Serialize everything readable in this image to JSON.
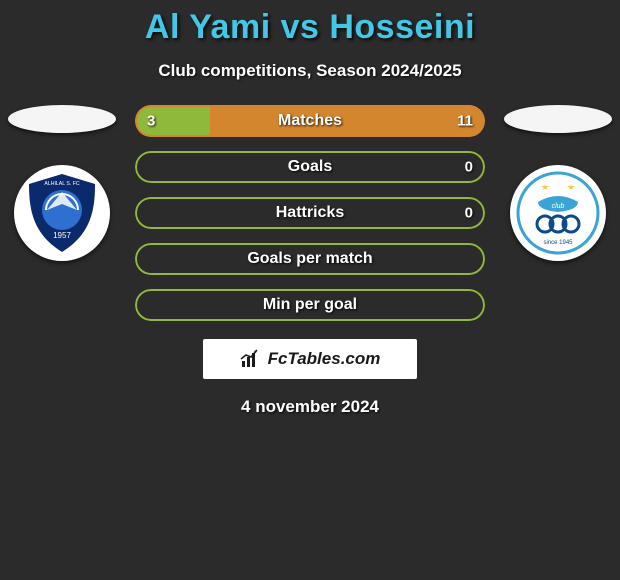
{
  "header": {
    "title": "Al Yami vs Hosseini",
    "title_color": "#43c7e6",
    "title_fontsize": 34,
    "subtitle": "Club competitions, Season 2024/2025",
    "subtitle_color": "#ffffff",
    "subtitle_fontsize": 17
  },
  "background_color": "#2b2b2b",
  "left_player": {
    "club_primary": "#0a2a6b",
    "club_secondary": "#ffffff",
    "flag_bg": "#f5f5f5"
  },
  "right_player": {
    "club_primary": "#3aa4d4",
    "club_secondary": "#ffffff",
    "club_accent": "#f2c94c",
    "flag_bg": "#f5f5f5"
  },
  "bars": {
    "height": 32,
    "radius": 16,
    "label_color": "#ffffff",
    "label_fontsize": 16,
    "value_fontsize": 15,
    "left_color": "#8fb93b",
    "right_color": "#d4862f",
    "items": [
      {
        "label": "Matches",
        "left_val": "3",
        "right_val": "11",
        "left_pct": 21.4,
        "right_pct": 78.6,
        "border": "#d4862f"
      },
      {
        "label": "Goals",
        "left_val": "",
        "right_val": "0",
        "left_pct": 0,
        "right_pct": 0,
        "border": "#8fb93b"
      },
      {
        "label": "Hattricks",
        "left_val": "",
        "right_val": "0",
        "left_pct": 0,
        "right_pct": 0,
        "border": "#8fb93b"
      },
      {
        "label": "Goals per match",
        "left_val": "",
        "right_val": "",
        "left_pct": 0,
        "right_pct": 0,
        "border": "#8fb93b"
      },
      {
        "label": "Min per goal",
        "left_val": "",
        "right_val": "",
        "left_pct": 0,
        "right_pct": 0,
        "border": "#8fb93b"
      }
    ]
  },
  "watermark": {
    "text": "FcTables.com",
    "bg": "#ffffff",
    "text_color": "#1a1a1a",
    "icon_color": "#1a1a1a"
  },
  "footer": {
    "date": "4 november 2024",
    "date_color": "#ffffff",
    "date_fontsize": 17
  }
}
